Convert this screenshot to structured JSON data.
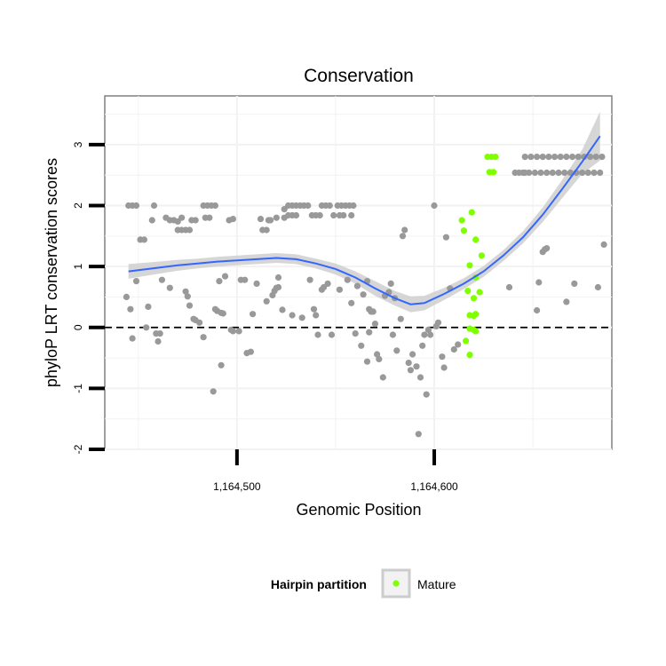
{
  "chart_data": {
    "type": "scatter",
    "title": "Conservation",
    "xlabel": "Genomic Position",
    "ylabel": "phyloP LRT conservation scores",
    "xlim": [
      1164433,
      1164690
    ],
    "ylim": [
      -2,
      3.8
    ],
    "x_ticks": [
      {
        "value": 1164500,
        "label": "1,164,500"
      },
      {
        "value": 1164600,
        "label": "1,164,600"
      }
    ],
    "y_ticks": [
      {
        "value": -2,
        "label": "-2"
      },
      {
        "value": -1,
        "label": "-1"
      },
      {
        "value": 0,
        "label": "0"
      },
      {
        "value": 1,
        "label": "1"
      },
      {
        "value": 2,
        "label": "2"
      },
      {
        "value": 3,
        "label": "3"
      }
    ],
    "grid": true,
    "reference_line": {
      "y": 0,
      "style": "dashed"
    },
    "legend": {
      "title": "Hairpin partition",
      "position": "bottom",
      "entries": [
        {
          "label": "Mature",
          "color": "#7FFF00"
        }
      ]
    },
    "colors": {
      "points": "#999999",
      "mature": "#7FFF00",
      "smooth": "#3366FF",
      "band": "#CCCCCC"
    },
    "series": [
      {
        "name": "",
        "color": "#999999",
        "points": [
          [
            1164445,
            2.0
          ],
          [
            1164447,
            2.0
          ],
          [
            1164449,
            2.0
          ],
          [
            1164458,
            2.0
          ],
          [
            1164457,
            1.76
          ],
          [
            1164451,
            1.44
          ],
          [
            1164453,
            1.44
          ],
          [
            1164444,
            0.5
          ],
          [
            1164446,
            0.3
          ],
          [
            1164449,
            0.76
          ],
          [
            1164447,
            -0.18
          ],
          [
            1164455,
            0.34
          ],
          [
            1164454,
            0.0
          ],
          [
            1164459,
            -0.1
          ],
          [
            1164460,
            -0.23
          ],
          [
            1164461,
            -0.1
          ],
          [
            1164462,
            0.78
          ],
          [
            1164466,
            0.65
          ],
          [
            1164464,
            1.8
          ],
          [
            1164466,
            1.76
          ],
          [
            1164468,
            1.76
          ],
          [
            1164470,
            1.74
          ],
          [
            1164470,
            1.6
          ],
          [
            1164472,
            1.6
          ],
          [
            1164474,
            1.6
          ],
          [
            1164476,
            1.6
          ],
          [
            1164472,
            1.8
          ],
          [
            1164477,
            1.76
          ],
          [
            1164479,
            1.76
          ],
          [
            1164475,
            0.51
          ],
          [
            1164476,
            0.36
          ],
          [
            1164474,
            0.59
          ],
          [
            1164478,
            0.14
          ],
          [
            1164479,
            0.12
          ],
          [
            1164481,
            0.08
          ],
          [
            1164483,
            2.0
          ],
          [
            1164485,
            2.0
          ],
          [
            1164487,
            2.0
          ],
          [
            1164489,
            2.0
          ],
          [
            1164484,
            1.8
          ],
          [
            1164486,
            1.8
          ],
          [
            1164483,
            -0.16
          ],
          [
            1164489,
            0.3
          ],
          [
            1164490,
            0.27
          ],
          [
            1164492,
            0.24
          ],
          [
            1164493,
            0.23
          ],
          [
            1164488,
            -1.05
          ],
          [
            1164492,
            -0.62
          ],
          [
            1164491,
            0.76
          ],
          [
            1164494,
            0.84
          ],
          [
            1164496,
            1.76
          ],
          [
            1164498,
            1.78
          ],
          [
            1164497,
            -0.04
          ],
          [
            1164498,
            -0.06
          ],
          [
            1164501,
            -0.06
          ],
          [
            1164502,
            0.78
          ],
          [
            1164504,
            0.78
          ],
          [
            1164505,
            -0.42
          ],
          [
            1164507,
            -0.4
          ],
          [
            1164508,
            0.22
          ],
          [
            1164510,
            0.72
          ],
          [
            1164512,
            1.78
          ],
          [
            1164513,
            1.6
          ],
          [
            1164515,
            1.6
          ],
          [
            1164516,
            1.76
          ],
          [
            1164517,
            1.76
          ],
          [
            1164515,
            0.43
          ],
          [
            1164518,
            0.53
          ],
          [
            1164519,
            0.6
          ],
          [
            1164520,
            0.65
          ],
          [
            1164521,
            0.66
          ],
          [
            1164521,
            0.82
          ],
          [
            1164520,
            1.8
          ],
          [
            1164524,
            1.8
          ],
          [
            1164524,
            1.94
          ],
          [
            1164526,
            2.0
          ],
          [
            1164528,
            2.0
          ],
          [
            1164530,
            2.0
          ],
          [
            1164526,
            1.84
          ],
          [
            1164528,
            1.84
          ],
          [
            1164530,
            1.84
          ],
          [
            1164523,
            0.29
          ],
          [
            1164528,
            0.2
          ],
          [
            1164533,
            0.16
          ],
          [
            1164532,
            2.0
          ],
          [
            1164534,
            2.0
          ],
          [
            1164536,
            2.0
          ],
          [
            1164538,
            1.84
          ],
          [
            1164540,
            1.84
          ],
          [
            1164542,
            1.84
          ],
          [
            1164537,
            0.78
          ],
          [
            1164539,
            0.3
          ],
          [
            1164540,
            0.2
          ],
          [
            1164541,
            -0.12
          ],
          [
            1164543,
            0.62
          ],
          [
            1164543,
            2.0
          ],
          [
            1164545,
            2.0
          ],
          [
            1164547,
            2.0
          ],
          [
            1164549,
            1.84
          ],
          [
            1164544,
            0.66
          ],
          [
            1164546,
            0.72
          ],
          [
            1164548,
            -0.12
          ],
          [
            1164551,
            2.0
          ],
          [
            1164553,
            2.0
          ],
          [
            1164555,
            2.0
          ],
          [
            1164557,
            2.0
          ],
          [
            1164559,
            2.0
          ],
          [
            1164552,
            1.84
          ],
          [
            1164554,
            1.84
          ],
          [
            1164558,
            1.84
          ],
          [
            1164552,
            0.62
          ],
          [
            1164556,
            0.78
          ],
          [
            1164558,
            0.4
          ],
          [
            1164560,
            -0.1
          ],
          [
            1164561,
            0.68
          ],
          [
            1164563,
            -0.3
          ],
          [
            1164564,
            0.54
          ],
          [
            1164566,
            0.76
          ],
          [
            1164567,
            0.3
          ],
          [
            1164568,
            0.26
          ],
          [
            1164569,
            0.26
          ],
          [
            1164566,
            -0.56
          ],
          [
            1164567,
            -0.08
          ],
          [
            1164570,
            0.06
          ],
          [
            1164571,
            -0.44
          ],
          [
            1164572,
            -0.52
          ],
          [
            1164574,
            -0.82
          ],
          [
            1164575,
            0.52
          ],
          [
            1164577,
            0.58
          ],
          [
            1164578,
            0.72
          ],
          [
            1164580,
            0.48
          ],
          [
            1164579,
            -0.12
          ],
          [
            1164581,
            -0.38
          ],
          [
            1164583,
            0.14
          ],
          [
            1164584,
            1.5
          ],
          [
            1164585,
            1.6
          ],
          [
            1164587,
            -0.58
          ],
          [
            1164588,
            -0.7
          ],
          [
            1164589,
            -0.44
          ],
          [
            1164591,
            -0.64
          ],
          [
            1164592,
            -1.75
          ],
          [
            1164593,
            -0.82
          ],
          [
            1164594,
            -0.3
          ],
          [
            1164595,
            -0.12
          ],
          [
            1164596,
            -1.1
          ],
          [
            1164597,
            -0.04
          ],
          [
            1164598,
            -0.12
          ],
          [
            1164600,
            2.0
          ],
          [
            1164601,
            0.02
          ],
          [
            1164602,
            0.08
          ],
          [
            1164604,
            -0.48
          ],
          [
            1164605,
            -0.66
          ],
          [
            1164606,
            1.48
          ],
          [
            1164608,
            0.64
          ],
          [
            1164610,
            -0.36
          ],
          [
            1164612,
            -0.28
          ],
          [
            1164638,
            0.66
          ],
          [
            1164652,
            0.28
          ],
          [
            1164653,
            0.74
          ],
          [
            1164655,
            1.24
          ],
          [
            1164656,
            1.28
          ],
          [
            1164657,
            1.3
          ],
          [
            1164667,
            0.42
          ],
          [
            1164671,
            0.72
          ],
          [
            1164683,
            0.66
          ],
          [
            1164686,
            1.36
          ],
          [
            1164645,
            2.54
          ],
          [
            1164648,
            2.54
          ],
          [
            1164651,
            2.54
          ],
          [
            1164654,
            2.54
          ],
          [
            1164657,
            2.54
          ],
          [
            1164660,
            2.54
          ],
          [
            1164663,
            2.54
          ],
          [
            1164666,
            2.54
          ],
          [
            1164669,
            2.54
          ],
          [
            1164672,
            2.54
          ],
          [
            1164675,
            2.54
          ],
          [
            1164678,
            2.54
          ],
          [
            1164681,
            2.54
          ],
          [
            1164684,
            2.54
          ],
          [
            1164646,
            2.8
          ],
          [
            1164649,
            2.8
          ],
          [
            1164652,
            2.8
          ],
          [
            1164655,
            2.8
          ],
          [
            1164658,
            2.8
          ],
          [
            1164661,
            2.8
          ],
          [
            1164664,
            2.8
          ],
          [
            1164667,
            2.8
          ],
          [
            1164670,
            2.8
          ],
          [
            1164673,
            2.8
          ],
          [
            1164676,
            2.8
          ],
          [
            1164679,
            2.8
          ],
          [
            1164682,
            2.8
          ],
          [
            1164685,
            2.8
          ],
          [
            1164641,
            2.54
          ],
          [
            1164643,
            2.54
          ],
          [
            1164646,
            2.54
          ]
        ]
      },
      {
        "name": "Mature",
        "color": "#7FFF00",
        "points": [
          [
            1164614,
            1.76
          ],
          [
            1164615,
            1.59
          ],
          [
            1164619,
            1.89
          ],
          [
            1164621,
            1.44
          ],
          [
            1164624,
            1.18
          ],
          [
            1164627,
            2.8
          ],
          [
            1164629,
            2.8
          ],
          [
            1164631,
            2.8
          ],
          [
            1164628,
            2.55
          ],
          [
            1164630,
            2.55
          ],
          [
            1164618,
            1.02
          ],
          [
            1164621,
            0.82
          ],
          [
            1164623,
            0.58
          ],
          [
            1164617,
            0.6
          ],
          [
            1164620,
            0.48
          ],
          [
            1164618,
            0.2
          ],
          [
            1164621,
            0.22
          ],
          [
            1164620,
            0.19
          ],
          [
            1164616,
            -0.22
          ],
          [
            1164618,
            -0.45
          ],
          [
            1164618,
            -0.02
          ],
          [
            1164620,
            -0.04
          ],
          [
            1164621,
            -0.06
          ]
        ]
      }
    ],
    "smooth": {
      "color": "#3366FF",
      "points": [
        [
          1164445,
          0.92
        ],
        [
          1164460,
          0.98
        ],
        [
          1164470,
          1.02
        ],
        [
          1164480,
          1.05
        ],
        [
          1164490,
          1.08
        ],
        [
          1164500,
          1.1
        ],
        [
          1164510,
          1.12
        ],
        [
          1164520,
          1.14
        ],
        [
          1164530,
          1.12
        ],
        [
          1164540,
          1.05
        ],
        [
          1164550,
          0.96
        ],
        [
          1164560,
          0.82
        ],
        [
          1164570,
          0.64
        ],
        [
          1164580,
          0.48
        ],
        [
          1164588,
          0.38
        ],
        [
          1164595,
          0.4
        ],
        [
          1164605,
          0.55
        ],
        [
          1164615,
          0.72
        ],
        [
          1164625,
          0.92
        ],
        [
          1164635,
          1.18
        ],
        [
          1164645,
          1.48
        ],
        [
          1164655,
          1.85
        ],
        [
          1164665,
          2.28
        ],
        [
          1164675,
          2.72
        ],
        [
          1164684,
          3.14
        ]
      ],
      "band_half_width": [
        0.12,
        0.1,
        0.09,
        0.08,
        0.08,
        0.08,
        0.08,
        0.08,
        0.08,
        0.08,
        0.09,
        0.1,
        0.12,
        0.12,
        0.13,
        0.12,
        0.1,
        0.09,
        0.09,
        0.09,
        0.1,
        0.12,
        0.15,
        0.2,
        0.4
      ]
    }
  }
}
